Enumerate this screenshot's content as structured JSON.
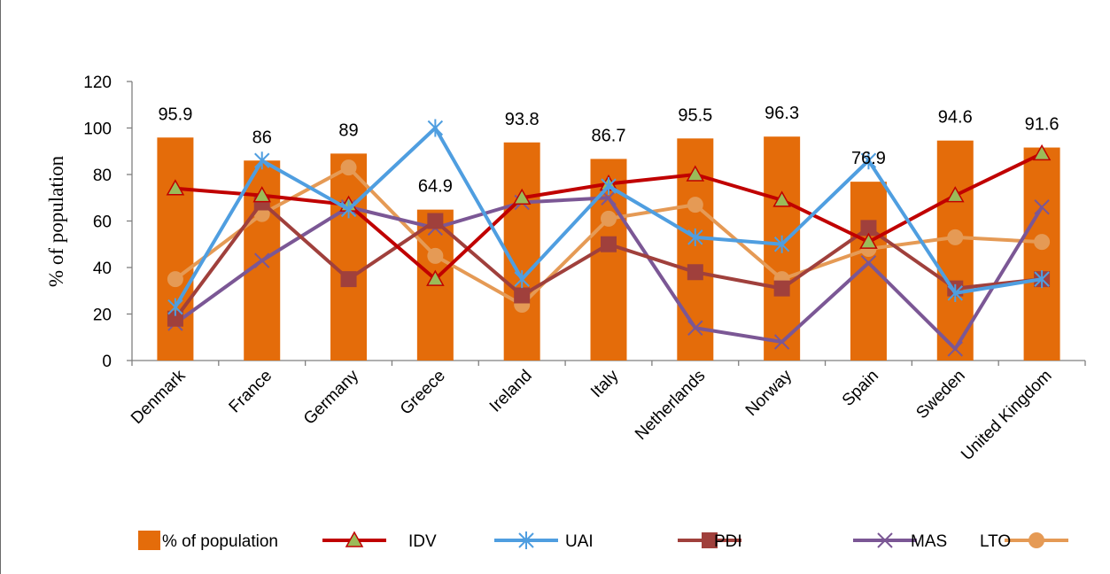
{
  "chart_data": {
    "type": "bar",
    "title": "",
    "xlabel": "",
    "ylabel": "% of population",
    "ylim": [
      0,
      120
    ],
    "yticks": [
      0,
      20,
      40,
      60,
      80,
      100,
      120
    ],
    "grid": false,
    "legend_position": "bottom",
    "categories": [
      "Denmark",
      "France",
      "Germany",
      "Greece",
      "Ireland",
      "Italy",
      "Netherlands",
      "Norway",
      "Spain",
      "Sweden",
      "United Kingdom"
    ],
    "bars": {
      "name": "% of population",
      "color": "#e46c0a",
      "values": [
        95.9,
        86,
        89,
        64.9,
        93.8,
        86.7,
        95.5,
        96.3,
        76.9,
        94.6,
        91.6
      ],
      "labels": [
        "95.9",
        "86",
        "89",
        "64.9",
        "93.8",
        "86.7",
        "95.5",
        "96.3",
        "76.9",
        "94.6",
        "91.6"
      ]
    },
    "series": [
      {
        "name": "IDV",
        "color": "#c00000",
        "marker": "triangle",
        "marker_fill": "#9bbb59",
        "values": [
          74,
          71,
          67,
          35,
          70,
          76,
          80,
          69,
          51,
          71,
          89
        ]
      },
      {
        "name": "UAI",
        "color": "#4f9ee0",
        "marker": "asterisk",
        "values": [
          23,
          86,
          65,
          100,
          35,
          75,
          53,
          50,
          86,
          29,
          35
        ]
      },
      {
        "name": "PDI",
        "color": "#a0403c",
        "marker": "square",
        "values": [
          18,
          68,
          35,
          60,
          28,
          50,
          38,
          31,
          57,
          31,
          35
        ]
      },
      {
        "name": "MAS",
        "color": "#7b5795",
        "marker": "x",
        "values": [
          16,
          43,
          66,
          57,
          68,
          70,
          14,
          8,
          42,
          5,
          66
        ]
      },
      {
        "name": "LTO",
        "color": "#e59a55",
        "marker": "circle",
        "values": [
          35,
          63,
          83,
          45,
          24,
          61,
          67,
          35,
          48,
          53,
          51
        ]
      }
    ]
  }
}
